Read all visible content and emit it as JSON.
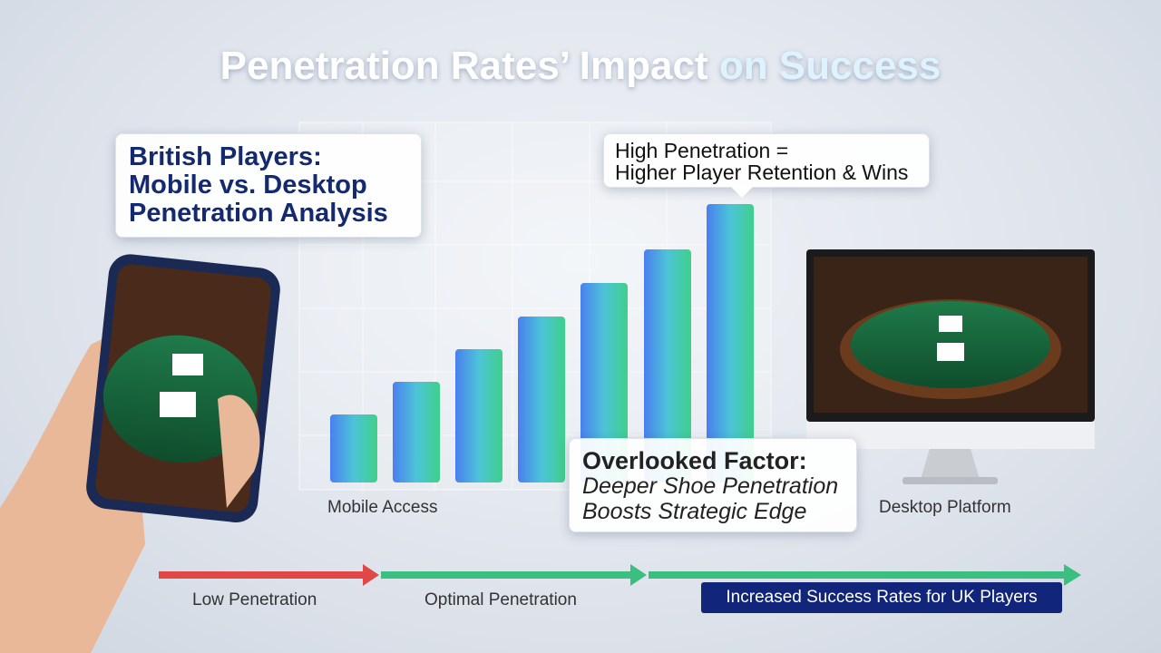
{
  "title": {
    "main": "Penetration Rates’ Impact",
    "highlight": "on Success"
  },
  "callouts": {
    "analysis": [
      "British Players:",
      "Mobile vs. Desktop",
      "Penetration Analysis"
    ],
    "retention": [
      "High Penetration =",
      "Higher Player Retention & Wins"
    ],
    "overlooked": [
      "Overlooked Factor:",
      "Deeper Shoe Penetration",
      "Boosts Strategic Edge"
    ]
  },
  "labels": {
    "mobile": "Mobile Access",
    "desktop": "Desktop Platform"
  },
  "scale": {
    "low": "Low Penetration",
    "optimal": "Optimal Penetration",
    "success": "Increased Success Rates for UK Players"
  }
}
